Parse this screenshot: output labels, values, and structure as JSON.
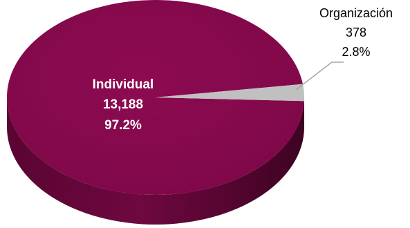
{
  "chart_data": {
    "type": "pie",
    "style": "3d",
    "slices": [
      {
        "label": "Individual",
        "value": 13188,
        "value_text": "13,188",
        "percent_text": "97.2%",
        "color": "#8b0a4f"
      },
      {
        "label": "Organización",
        "value": 378,
        "value_text": "378",
        "percent_text": "2.8%",
        "color": "#c0c0c0"
      }
    ]
  }
}
